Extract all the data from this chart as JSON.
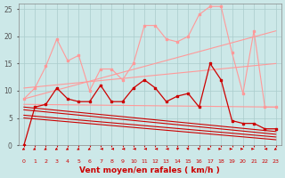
{
  "xlabel": "Vent moyen/en rafales ( km/h )",
  "xlim": [
    -0.5,
    23.5
  ],
  "ylim": [
    0,
    26
  ],
  "yticks": [
    0,
    5,
    10,
    15,
    20,
    25
  ],
  "xticks": [
    0,
    1,
    2,
    3,
    4,
    5,
    6,
    7,
    8,
    9,
    10,
    11,
    12,
    13,
    14,
    15,
    16,
    17,
    18,
    19,
    20,
    21,
    22,
    23
  ],
  "bg_color": "#cce8e8",
  "grid_color": "#aacccc",
  "line_rafall": {
    "x": [
      0,
      1,
      2,
      3,
      4,
      5,
      6,
      7,
      8,
      9,
      10,
      11,
      12,
      13,
      14,
      15,
      16,
      17,
      18,
      19,
      20,
      21,
      22,
      23
    ],
    "y": [
      8.5,
      10.5,
      14.5,
      19.5,
      15.5,
      16.5,
      10,
      14,
      14,
      12,
      15,
      22,
      22,
      19.5,
      19,
      20,
      24,
      25.5,
      25.5,
      17,
      9.5,
      21,
      7,
      7
    ],
    "color": "#ff9999",
    "lw": 0.8,
    "marker": "s",
    "ms": 1.8,
    "zorder": 3
  },
  "line_trend_upper": {
    "x": [
      0,
      23
    ],
    "y": [
      8.5,
      21
    ],
    "color": "#ff9999",
    "lw": 0.8,
    "zorder": 2
  },
  "line_trend_mid": {
    "x": [
      0,
      23
    ],
    "y": [
      10.5,
      15
    ],
    "color": "#ff9999",
    "lw": 0.8,
    "zorder": 2
  },
  "line_trend_lower": {
    "x": [
      0,
      23
    ],
    "y": [
      7.5,
      7.0
    ],
    "color": "#ff9999",
    "lw": 0.8,
    "zorder": 2
  },
  "line_moyen": {
    "x": [
      0,
      1,
      2,
      3,
      4,
      5,
      6,
      7,
      8,
      9,
      10,
      11,
      12,
      13,
      14,
      15,
      16,
      17,
      18,
      19,
      20,
      21,
      22,
      23
    ],
    "y": [
      0,
      7,
      7.5,
      10.5,
      8.5,
      8,
      8,
      11,
      8,
      8,
      10.5,
      12,
      10.5,
      8,
      9,
      9.5,
      7,
      15,
      12,
      4.5,
      4,
      4,
      3,
      3
    ],
    "color": "#cc0000",
    "lw": 0.9,
    "marker": "s",
    "ms": 1.8,
    "zorder": 4
  },
  "line_trend_dark1": {
    "x": [
      0,
      23
    ],
    "y": [
      7.0,
      2.5
    ],
    "color": "#cc0000",
    "lw": 0.8,
    "zorder": 2
  },
  "line_trend_dark2": {
    "x": [
      0,
      23
    ],
    "y": [
      6.5,
      2.0
    ],
    "color": "#cc0000",
    "lw": 0.8,
    "zorder": 2
  },
  "line_trend_dark3": {
    "x": [
      0,
      23
    ],
    "y": [
      5.5,
      1.5
    ],
    "color": "#cc0000",
    "lw": 0.8,
    "zorder": 2
  },
  "line_trend_dark4": {
    "x": [
      0,
      23
    ],
    "y": [
      5.0,
      1.0
    ],
    "color": "#cc0000",
    "lw": 0.8,
    "zorder": 2
  },
  "wind_arrows_x": [
    0,
    1,
    2,
    3,
    4,
    5,
    6,
    7,
    8,
    9,
    10,
    11,
    12,
    13,
    14,
    15,
    16,
    17,
    18,
    19,
    20,
    21,
    22,
    23
  ],
  "wind_angles_deg": [
    225,
    225,
    225,
    225,
    225,
    225,
    225,
    270,
    270,
    270,
    270,
    270,
    270,
    270,
    45,
    315,
    315,
    90,
    90,
    90,
    90,
    90,
    270,
    225
  ]
}
